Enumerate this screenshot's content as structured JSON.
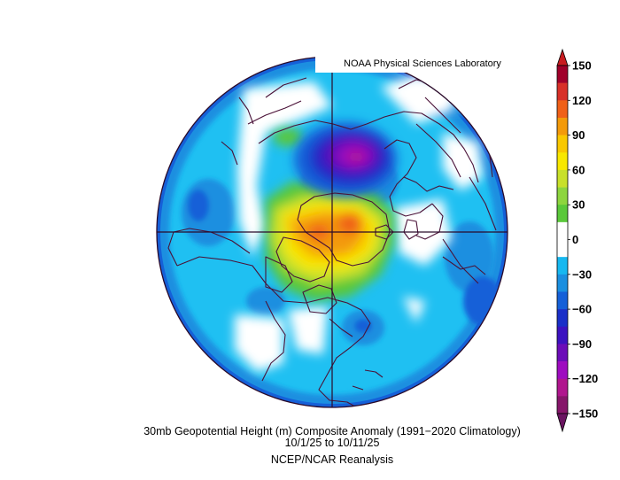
{
  "credit": "NOAA Physical Sciences Laboratory",
  "caption": {
    "line1": "30mb Geopotential Height (m) Composite Anomaly (1991−2020 Climatology)",
    "line2": "10/1/25  to 10/11/25",
    "line3": "NCEP/NCAR Reanalysis"
  },
  "colorbar": {
    "labels": [
      "150",
      "120",
      "90",
      "60",
      "30",
      "0",
      "−30",
      "−60",
      "−90",
      "−120",
      "−150"
    ],
    "bands": [
      "#a0002a",
      "#d83028",
      "#f06018",
      "#f39a0a",
      "#f9c800",
      "#f8e800",
      "#c8e02a",
      "#8dd53e",
      "#5ac83a",
      "#ffffff",
      "#ffffff",
      "#16b8f0",
      "#1a8fe0",
      "#1560d8",
      "#1a2fc8",
      "#3c12c0",
      "#6c0cb8",
      "#9e0cc0",
      "#b0168e",
      "#86166a"
    ],
    "top_arrow_color": "#c81c20",
    "bottom_arrow_color": "#6a1460"
  },
  "map": {
    "projection": "north-polar-stereographic",
    "ocean_color": "#1fc0f2",
    "anomaly_features": [
      "positive anomaly over Canadian Arctic / Greenland (max ~ +120 m)",
      "negative anomaly over Scandinavia / Barents region (min ~ -120 m)"
    ]
  }
}
